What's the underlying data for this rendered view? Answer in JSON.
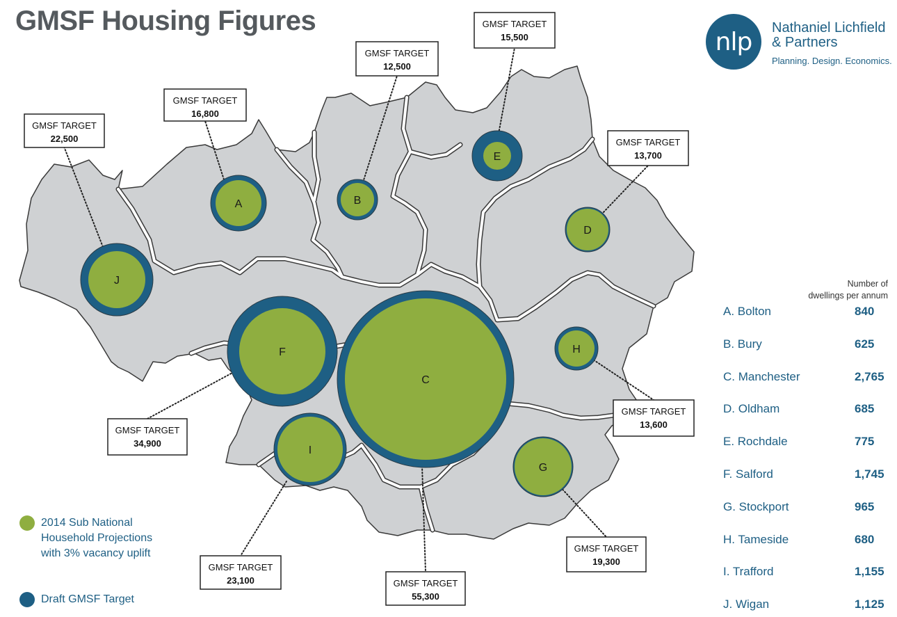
{
  "title": "GMSF Housing Figures",
  "logo": {
    "mark": "nlp",
    "name_line1": "Nathaniel Lichfield",
    "name_line2": "& Partners",
    "tagline": "Planning. Design. Economics."
  },
  "colors": {
    "green": "#8fae40",
    "blue": "#1e5f84",
    "map_fill": "#cfd1d3",
    "map_border": "#3a3a3a",
    "text_grey": "#555a5e"
  },
  "target_label": "GMSF TARGET",
  "districts": [
    {
      "id": "A",
      "name": "Bolton",
      "dwellings_per_annum": "840",
      "gmsf_target": "16,800"
    },
    {
      "id": "B",
      "name": "Bury",
      "dwellings_per_annum": "625",
      "gmsf_target": "12,500"
    },
    {
      "id": "C",
      "name": "Manchester",
      "dwellings_per_annum": "2,765",
      "gmsf_target": "55,300"
    },
    {
      "id": "D",
      "name": "Oldham",
      "dwellings_per_annum": "685",
      "gmsf_target": "13,700"
    },
    {
      "id": "E",
      "name": "Rochdale",
      "dwellings_per_annum": "775",
      "gmsf_target": "15,500"
    },
    {
      "id": "F",
      "name": "Salford",
      "dwellings_per_annum": "1,745",
      "gmsf_target": "34,900"
    },
    {
      "id": "G",
      "name": "Stockport",
      "dwellings_per_annum": "965",
      "gmsf_target": "19,300"
    },
    {
      "id": "H",
      "name": "Tameside",
      "dwellings_per_annum": "680",
      "gmsf_target": "13,600"
    },
    {
      "id": "I",
      "name": "Trafford",
      "dwellings_per_annum": "1,155",
      "gmsf_target": "23,100"
    },
    {
      "id": "J",
      "name": "Wigan",
      "dwellings_per_annum": "1,125",
      "gmsf_target": "22,500"
    }
  ],
  "table": {
    "header_line1": "Number of",
    "header_line2": "dwellings per annum",
    "rows": [
      {
        "label": "A. Bolton",
        "value": "840"
      },
      {
        "label": "B. Bury",
        "value": "625"
      },
      {
        "label": "C. Manchester",
        "value": "2,765"
      },
      {
        "label": "D. Oldham",
        "value": "685"
      },
      {
        "label": "E. Rochdale",
        "value": "775"
      },
      {
        "label": "F. Salford",
        "value": "1,745"
      },
      {
        "label": "G. Stockport",
        "value": "965"
      },
      {
        "label": "H. Tameside",
        "value": "680"
      },
      {
        "label": "I. Trafford",
        "value": "1,155"
      },
      {
        "label": "J. Wigan",
        "value": "1,125"
      }
    ]
  },
  "legend": [
    {
      "label": "2014 Sub National Household Projections with 3% vacancy uplift",
      "color": "#8fae40"
    },
    {
      "label": "Draft GMSF Target",
      "color": "#1e5f84"
    }
  ]
}
